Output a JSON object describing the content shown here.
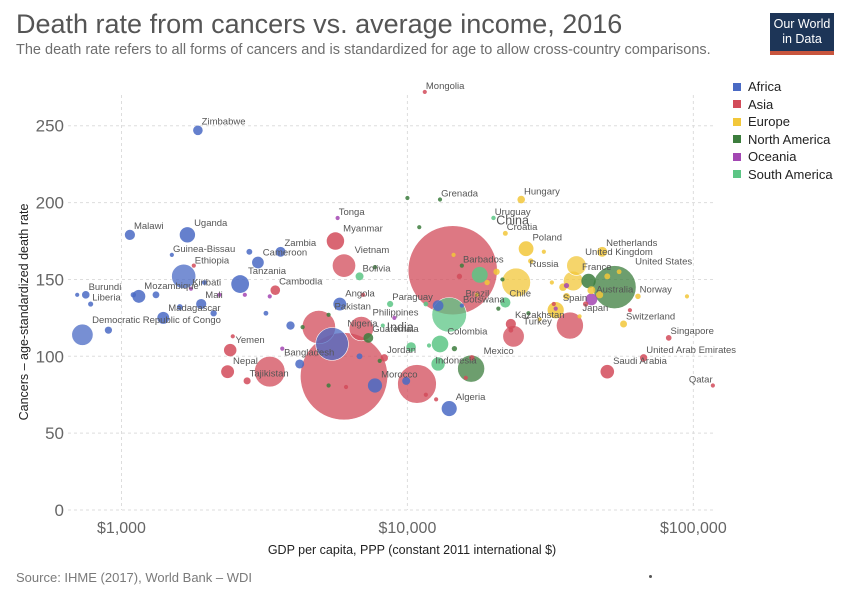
{
  "header": {
    "title": "Death rate from cancers vs. average income, 2016",
    "subtitle": "The death rate refers to all forms of cancers and is standardized for age to allow cross-country comparisons.",
    "logo_line1": "Our World",
    "logo_line2": "in Data"
  },
  "footer": {
    "source": "Source: IHME (2017), World Bank – WDI"
  },
  "legend": [
    {
      "name": "Africa",
      "color": "#4a6ac4"
    },
    {
      "name": "Asia",
      "color": "#d24b5a"
    },
    {
      "name": "Europe",
      "color": "#f2c73a"
    },
    {
      "name": "North America",
      "color": "#3c7d3d"
    },
    {
      "name": "Oceania",
      "color": "#a347b3"
    },
    {
      "name": "South America",
      "color": "#5cc585"
    }
  ],
  "chart_data": {
    "type": "scatter",
    "title": "Death rate from cancers vs. average income, 2016",
    "xlabel": "GDP per capita, PPP (constant 2011 international $)",
    "ylabel": "Cancers – age-standardized death rate",
    "x_scale": "log",
    "xlim": [
      650,
      120000
    ],
    "ylim": [
      0,
      270
    ],
    "x_ticks": [
      {
        "value": 1000,
        "label": "$1,000"
      },
      {
        "value": 10000,
        "label": "$10,000"
      },
      {
        "value": 100000,
        "label": "$100,000"
      }
    ],
    "y_ticks": [
      0,
      50,
      100,
      150,
      200,
      250
    ],
    "grid": true,
    "legend_position": "right",
    "size_note": "bubble size proportional to population",
    "points": [
      {
        "label": "Mongolia",
        "region": "Asia",
        "x": 11500,
        "y": 272,
        "pop": 3
      },
      {
        "label": "Zimbabwe",
        "region": "Africa",
        "x": 1850,
        "y": 247,
        "pop": 16
      },
      {
        "label": "Grenada",
        "region": "North America",
        "x": 13000,
        "y": 202,
        "pop": 0.1
      },
      {
        "label": "Hungary",
        "region": "Europe",
        "x": 25000,
        "y": 202,
        "pop": 10
      },
      {
        "label": "Tonga",
        "region": "Oceania",
        "x": 5700,
        "y": 190,
        "pop": 0.1
      },
      {
        "label": "Uruguay",
        "region": "South America",
        "x": 20000,
        "y": 190,
        "pop": 3.4
      },
      {
        "label": "Malawi",
        "region": "Africa",
        "x": 1070,
        "y": 179,
        "pop": 18
      },
      {
        "label": "Uganda",
        "region": "Africa",
        "x": 1700,
        "y": 179,
        "pop": 41
      },
      {
        "label": "Croatia",
        "region": "Europe",
        "x": 22000,
        "y": 180,
        "pop": 4.2
      },
      {
        "label": "Myanmar",
        "region": "Asia",
        "x": 5600,
        "y": 175,
        "pop": 53
      },
      {
        "label": "China",
        "region": "Asia",
        "x": 14400,
        "y": 156,
        "pop": 1380
      },
      {
        "label": "Poland",
        "region": "Europe",
        "x": 26000,
        "y": 170,
        "pop": 38
      },
      {
        "label": "Guinea-Bissau",
        "region": "Africa",
        "x": 1500,
        "y": 166,
        "pop": 1.8
      },
      {
        "label": "Cameroon",
        "region": "Africa",
        "x": 3000,
        "y": 161,
        "pop": 24
      },
      {
        "label": "Zambia",
        "region": "Africa",
        "x": 3600,
        "y": 168,
        "pop": 17
      },
      {
        "label": "Vietnam",
        "region": "Asia",
        "x": 6000,
        "y": 159,
        "pop": 94
      },
      {
        "label": "Netherlands",
        "region": "Europe",
        "x": 48000,
        "y": 168,
        "pop": 17
      },
      {
        "label": "Barbados",
        "region": "North America",
        "x": 15500,
        "y": 159,
        "pop": 0.3
      },
      {
        "label": "United Kingdom",
        "region": "Europe",
        "x": 39000,
        "y": 159,
        "pop": 66
      },
      {
        "label": "Ethiopia",
        "region": "Africa",
        "x": 1650,
        "y": 152,
        "pop": 102
      },
      {
        "label": "Bolivia",
        "region": "South America",
        "x": 6800,
        "y": 152,
        "pop": 11
      },
      {
        "label": "Russia",
        "region": "Europe",
        "x": 24000,
        "y": 148,
        "pop": 144
      },
      {
        "label": "France",
        "region": "Europe",
        "x": 38000,
        "y": 149,
        "pop": 67
      },
      {
        "label": "United States",
        "region": "North America",
        "x": 53000,
        "y": 145,
        "pop": 323
      },
      {
        "label": "Burundi",
        "region": "Africa",
        "x": 750,
        "y": 140,
        "pop": 10
      },
      {
        "label": "Tanzania",
        "region": "Africa",
        "x": 2600,
        "y": 147,
        "pop": 55
      },
      {
        "label": "Kiribati",
        "region": "Oceania",
        "x": 1750,
        "y": 144,
        "pop": 0.1
      },
      {
        "label": "Mozambique",
        "region": "Africa",
        "x": 1150,
        "y": 139,
        "pop": 29
      },
      {
        "label": "Cambodia",
        "region": "Asia",
        "x": 3450,
        "y": 143,
        "pop": 16
      },
      {
        "label": "Norway",
        "region": "Europe",
        "x": 64000,
        "y": 139,
        "pop": 5.2
      },
      {
        "label": "Liberia",
        "region": "Africa",
        "x": 780,
        "y": 134,
        "pop": 4.6
      },
      {
        "label": "Mali",
        "region": "Africa",
        "x": 1900,
        "y": 134,
        "pop": 18
      },
      {
        "label": "Angola",
        "region": "Africa",
        "x": 5800,
        "y": 134,
        "pop": 29
      },
      {
        "label": "Paraguay",
        "region": "South America",
        "x": 8700,
        "y": 134,
        "pop": 6.7
      },
      {
        "label": "Chile",
        "region": "South America",
        "x": 22000,
        "y": 135,
        "pop": 18
      },
      {
        "label": "Australia",
        "region": "Oceania",
        "x": 44000,
        "y": 137,
        "pop": 24
      },
      {
        "label": "Brazil",
        "region": "South America",
        "x": 14000,
        "y": 127,
        "pop": 208
      },
      {
        "label": "Botswana",
        "region": "Africa",
        "x": 15500,
        "y": 133,
        "pop": 2.3
      },
      {
        "label": "Spain",
        "region": "Europe",
        "x": 33000,
        "y": 130,
        "pop": 46
      },
      {
        "label": "Madagascar",
        "region": "Africa",
        "x": 1400,
        "y": 125,
        "pop": 25
      },
      {
        "label": "Pakistan",
        "region": "Asia",
        "x": 4900,
        "y": 119,
        "pop": 193
      },
      {
        "label": "Kazakhstan",
        "region": "Asia",
        "x": 23000,
        "y": 121,
        "pop": 18
      },
      {
        "label": "Japan",
        "region": "Asia",
        "x": 37000,
        "y": 120,
        "pop": 127
      },
      {
        "label": "Switzerland",
        "region": "Europe",
        "x": 57000,
        "y": 121,
        "pop": 8.4
      },
      {
        "label": "Democratic Republic of Congo",
        "region": "Africa",
        "x": 730,
        "y": 114,
        "pop": 79
      },
      {
        "label": "Philippines",
        "region": "Asia",
        "x": 6900,
        "y": 118,
        "pop": 103
      },
      {
        "label": "Guatemala",
        "region": "North America",
        "x": 7300,
        "y": 112,
        "pop": 16.6
      },
      {
        "label": "Turkey",
        "region": "Asia",
        "x": 23500,
        "y": 113,
        "pop": 80
      },
      {
        "label": "Singapore",
        "region": "Asia",
        "x": 82000,
        "y": 112,
        "pop": 5.6
      },
      {
        "label": "Nigeria",
        "region": "Africa",
        "x": 5450,
        "y": 108,
        "pop": 186
      },
      {
        "label": "Colombia",
        "region": "South America",
        "x": 13000,
        "y": 108,
        "pop": 48
      },
      {
        "label": "Yemen",
        "region": "Asia",
        "x": 2400,
        "y": 104,
        "pop": 27
      },
      {
        "label": "United Arab Emirates",
        "region": "Asia",
        "x": 67000,
        "y": 99,
        "pop": 9.3
      },
      {
        "label": "India",
        "region": "Asia",
        "x": 6000,
        "y": 87,
        "pop": 1324
      },
      {
        "label": "Jordan",
        "region": "Asia",
        "x": 8300,
        "y": 99,
        "pop": 9.5
      },
      {
        "label": "Mexico",
        "region": "North America",
        "x": 16700,
        "y": 92,
        "pop": 127
      },
      {
        "label": "Bangladesh",
        "region": "Asia",
        "x": 3300,
        "y": 90,
        "pop": 163
      },
      {
        "label": "Nepal",
        "region": "Asia",
        "x": 2350,
        "y": 90,
        "pop": 29
      },
      {
        "label": "Saudi Arabia",
        "region": "Asia",
        "x": 50000,
        "y": 90,
        "pop": 32
      },
      {
        "label": "Tajikistan",
        "region": "Asia",
        "x": 2750,
        "y": 84,
        "pop": 8.7
      },
      {
        "label": "Morocco",
        "region": "Africa",
        "x": 7700,
        "y": 81,
        "pop": 35
      },
      {
        "label": "Indonesia",
        "region": "Asia",
        "x": 10800,
        "y": 82,
        "pop": 261
      },
      {
        "label": "Qatar",
        "region": "Asia",
        "x": 117000,
        "y": 81,
        "pop": 2.6
      },
      {
        "label": "Algeria",
        "region": "Africa",
        "x": 14000,
        "y": 66,
        "pop": 40
      }
    ],
    "unlabeled_points": [
      {
        "region": "Africa",
        "x": 700,
        "y": 140,
        "pop": 1
      },
      {
        "region": "Africa",
        "x": 1100,
        "y": 140,
        "pop": 5
      },
      {
        "region": "Africa",
        "x": 1320,
        "y": 140,
        "pop": 8
      },
      {
        "region": "Africa",
        "x": 1600,
        "y": 132,
        "pop": 6
      },
      {
        "region": "Africa",
        "x": 2100,
        "y": 128,
        "pop": 7
      },
      {
        "region": "Africa",
        "x": 3200,
        "y": 128,
        "pop": 4
      },
      {
        "region": "Africa",
        "x": 3900,
        "y": 120,
        "pop": 12
      },
      {
        "region": "Africa",
        "x": 4200,
        "y": 95,
        "pop": 14
      },
      {
        "region": "Africa",
        "x": 2800,
        "y": 168,
        "pop": 6
      },
      {
        "region": "Africa",
        "x": 1950,
        "y": 148,
        "pop": 4
      },
      {
        "region": "Africa",
        "x": 900,
        "y": 117,
        "pop": 9
      },
      {
        "region": "Africa",
        "x": 12800,
        "y": 133,
        "pop": 20
      },
      {
        "region": "Africa",
        "x": 9900,
        "y": 84,
        "pop": 11
      },
      {
        "region": "Africa",
        "x": 6800,
        "y": 100,
        "pop": 6
      },
      {
        "region": "Asia",
        "x": 2450,
        "y": 113,
        "pop": 2
      },
      {
        "region": "Asia",
        "x": 6100,
        "y": 80,
        "pop": 3
      },
      {
        "region": "Asia",
        "x": 11600,
        "y": 75,
        "pop": 3
      },
      {
        "region": "Asia",
        "x": 12600,
        "y": 72,
        "pop": 2
      },
      {
        "region": "Asia",
        "x": 16000,
        "y": 86,
        "pop": 2
      },
      {
        "region": "Asia",
        "x": 16800,
        "y": 99,
        "pop": 5
      },
      {
        "region": "Asia",
        "x": 23000,
        "y": 117,
        "pop": 4
      },
      {
        "region": "Asia",
        "x": 32500,
        "y": 134,
        "pop": 3
      },
      {
        "region": "Asia",
        "x": 42000,
        "y": 134,
        "pop": 5
      },
      {
        "region": "Asia",
        "x": 60000,
        "y": 130,
        "pop": 2
      },
      {
        "region": "Asia",
        "x": 7000,
        "y": 140,
        "pop": 3
      },
      {
        "region": "Asia",
        "x": 1790,
        "y": 159,
        "pop": 2
      },
      {
        "region": "Asia",
        "x": 15200,
        "y": 152,
        "pop": 5
      },
      {
        "region": "Europe",
        "x": 19000,
        "y": 148,
        "pop": 5
      },
      {
        "region": "Europe",
        "x": 20500,
        "y": 155,
        "pop": 7
      },
      {
        "region": "Europe",
        "x": 27000,
        "y": 162,
        "pop": 5
      },
      {
        "region": "Europe",
        "x": 30000,
        "y": 168,
        "pop": 2
      },
      {
        "region": "Europe",
        "x": 32000,
        "y": 148,
        "pop": 3
      },
      {
        "region": "Europe",
        "x": 35000,
        "y": 145,
        "pop": 10
      },
      {
        "region": "Europe",
        "x": 36000,
        "y": 139,
        "pop": 8
      },
      {
        "region": "Europe",
        "x": 44000,
        "y": 143,
        "pop": 11
      },
      {
        "region": "Europe",
        "x": 47000,
        "y": 140,
        "pop": 9
      },
      {
        "region": "Europe",
        "x": 50000,
        "y": 152,
        "pop": 6
      },
      {
        "region": "Europe",
        "x": 55000,
        "y": 155,
        "pop": 4
      },
      {
        "region": "Europe",
        "x": 95000,
        "y": 139,
        "pop": 0.6
      },
      {
        "region": "Europe",
        "x": 14500,
        "y": 166,
        "pop": 2
      },
      {
        "region": "Europe",
        "x": 17500,
        "y": 140,
        "pop": 3
      },
      {
        "region": "Europe",
        "x": 29000,
        "y": 124,
        "pop": 2
      },
      {
        "region": "Europe",
        "x": 40000,
        "y": 126,
        "pop": 1
      },
      {
        "region": "North America",
        "x": 10000,
        "y": 203,
        "pop": 0.1
      },
      {
        "region": "North America",
        "x": 11000,
        "y": 184,
        "pop": 0.1
      },
      {
        "region": "North America",
        "x": 7700,
        "y": 158,
        "pop": 0.3
      },
      {
        "region": "North America",
        "x": 5300,
        "y": 127,
        "pop": 0.3
      },
      {
        "region": "North America",
        "x": 4300,
        "y": 119,
        "pop": 0.6
      },
      {
        "region": "North America",
        "x": 5300,
        "y": 81,
        "pop": 0.4
      },
      {
        "region": "North America",
        "x": 8000,
        "y": 97,
        "pop": 0.8
      },
      {
        "region": "North America",
        "x": 14600,
        "y": 105,
        "pop": 4.9
      },
      {
        "region": "North America",
        "x": 20800,
        "y": 131,
        "pop": 1.4
      },
      {
        "region": "North America",
        "x": 26500,
        "y": 128,
        "pop": 0.4
      },
      {
        "region": "North America",
        "x": 43000,
        "y": 149,
        "pop": 36
      },
      {
        "region": "North America",
        "x": 21500,
        "y": 150,
        "pop": 0.3
      },
      {
        "region": "Oceania",
        "x": 2200,
        "y": 140,
        "pop": 0.6
      },
      {
        "region": "Oceania",
        "x": 2700,
        "y": 140,
        "pop": 0.3
      },
      {
        "region": "Oceania",
        "x": 3300,
        "y": 139,
        "pop": 0.2
      },
      {
        "region": "Oceania",
        "x": 3650,
        "y": 105,
        "pop": 0.3
      },
      {
        "region": "Oceania",
        "x": 9000,
        "y": 125,
        "pop": 0.9
      },
      {
        "region": "Oceania",
        "x": 36000,
        "y": 146,
        "pop": 4.7
      },
      {
        "region": "Oceania",
        "x": 33000,
        "y": 131,
        "pop": 0.3
      },
      {
        "region": "South America",
        "x": 11900,
        "y": 107,
        "pop": 0.8
      },
      {
        "region": "South America",
        "x": 8200,
        "y": 120,
        "pop": 0.5
      },
      {
        "region": "South America",
        "x": 10300,
        "y": 106,
        "pop": 16
      },
      {
        "region": "South America",
        "x": 11600,
        "y": 134,
        "pop": 4
      },
      {
        "region": "South America",
        "x": 12800,
        "y": 95,
        "pop": 31
      },
      {
        "region": "South America",
        "x": 17900,
        "y": 153,
        "pop": 44
      }
    ]
  }
}
